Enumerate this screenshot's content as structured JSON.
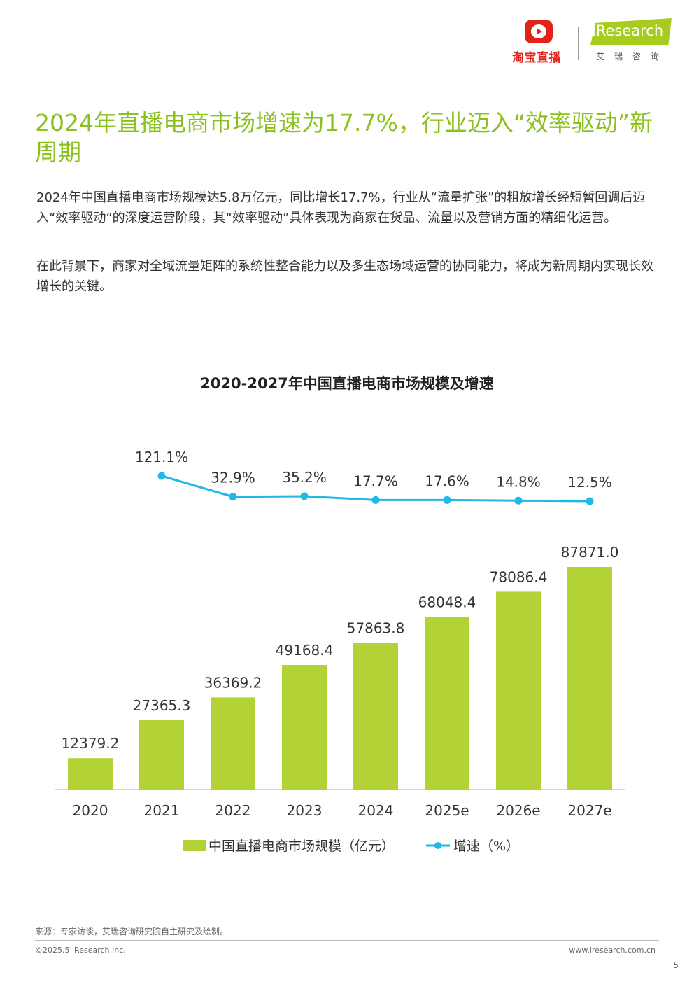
{
  "header": {
    "taobao_text": "淘宝直播",
    "iresearch_text": "iResearch",
    "iresearch_cn": "艾瑞咨询"
  },
  "headline": "2024年直播电商市场增速为17.7%，行业迈入“效率驱动”新周期",
  "paragraphs": [
    "2024年中国直播电商市场规模达5.8万亿元，同比增长17.7%，行业从“流量扩张”的粗放增长经短暂回调后迈入“效率驱动”的深度运营阶段，其“效率驱动”具体表现为商家在货品、流量以及营销方面的精细化运营。",
    "在此背景下，商家对全域流量矩阵的系统性整合能力以及多生态场域运营的协同能力，将成为新周期内实现长效增长的关键。"
  ],
  "chart_data": {
    "type": "bar",
    "title": "2020-2027年中国直播电商市场规模及增速",
    "categories": [
      "2020",
      "2021",
      "2022",
      "2023",
      "2024",
      "2025e",
      "2026e",
      "2027e"
    ],
    "series": [
      {
        "name": "中国直播电商市场规模（亿元）",
        "type": "bar",
        "values": [
          12379.2,
          27365.3,
          36369.2,
          49168.4,
          57863.8,
          68048.4,
          78086.4,
          87871.0
        ],
        "labels": [
          "12379.2",
          "27365.3",
          "36369.2",
          "49168.4",
          "57863.8",
          "68048.4",
          "78086.4",
          "87871.0"
        ],
        "color": "#b2d235"
      },
      {
        "name": "增速（%）",
        "type": "line",
        "x": [
          "2021",
          "2022",
          "2023",
          "2024",
          "2025e",
          "2026e",
          "2027e"
        ],
        "values": [
          121.1,
          32.9,
          35.2,
          17.7,
          17.6,
          14.8,
          12.5
        ],
        "labels": [
          "121.1%",
          "32.9%",
          "35.2%",
          "17.7%",
          "17.6%",
          "14.8%",
          "12.5%"
        ],
        "color": "#1fb8e8"
      }
    ],
    "legend_position": "bottom",
    "grid": false
  },
  "footer": {
    "source": "来源：专家访谈，艾瑞咨询研究院自主研究及绘制。",
    "copyright": "©2025.5 iResearch Inc.",
    "website": "www.iresearch.com.cn",
    "page_number": "5"
  }
}
